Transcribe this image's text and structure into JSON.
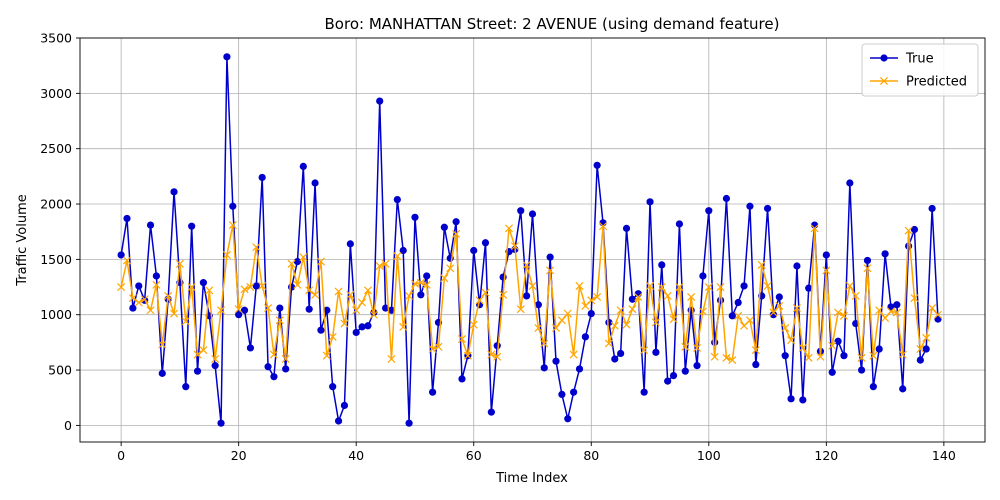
{
  "chart_data": {
    "type": "line",
    "title": "Boro: MANHATTAN Street: 2 AVENUE (using demand feature)",
    "xlabel": "Time Index",
    "ylabel": "Traffic Volume",
    "xlim": [
      -7,
      147
    ],
    "ylim": [
      -150,
      3500
    ],
    "xticks": [
      0,
      20,
      40,
      60,
      80,
      100,
      120,
      140
    ],
    "yticks": [
      0,
      500,
      1000,
      1500,
      2000,
      2500,
      3000,
      3500
    ],
    "grid": true,
    "legend_position": "top-right",
    "series": [
      {
        "name": "True",
        "color": "#0000cc",
        "marker": "circle",
        "values": [
          1540,
          1870,
          1060,
          1260,
          1130,
          1810,
          1350,
          470,
          1140,
          2110,
          1290,
          350,
          1800,
          490,
          1290,
          990,
          540,
          20,
          3330,
          1980,
          1000,
          1040,
          700,
          1260,
          2240,
          530,
          440,
          1060,
          510,
          1250,
          1480,
          2340,
          1050,
          2190,
          860,
          1040,
          350,
          40,
          180,
          1640,
          840,
          890,
          900,
          1020,
          2930,
          1060,
          1040,
          2040,
          1580,
          20,
          1880,
          1180,
          1350,
          300,
          930,
          1790,
          1510,
          1840,
          420,
          630,
          1580,
          1090,
          1650,
          120,
          720,
          1340,
          1570,
          1590,
          1940,
          1170,
          1910,
          1090,
          520,
          1520,
          580,
          280,
          60,
          300,
          510,
          800,
          1010,
          2350,
          1830,
          930,
          600,
          650,
          1780,
          1140,
          1190,
          300,
          2020,
          660,
          1450,
          400,
          450,
          1820,
          490,
          1040,
          540,
          1350,
          1940,
          750,
          1130,
          2050,
          990,
          1110,
          1260,
          1980,
          550,
          1170,
          1960,
          1000,
          1160,
          630,
          240,
          1440,
          230,
          1240,
          1810,
          670,
          1540,
          480,
          760,
          630,
          2190,
          920,
          500,
          1490,
          350,
          690,
          1550,
          1070,
          1090,
          330,
          1620,
          1770,
          590,
          690,
          1960,
          960
        ]
      },
      {
        "name": "Predicted",
        "color": "#ffa500",
        "marker": "x",
        "values": [
          1250,
          1490,
          1150,
          1110,
          1140,
          1040,
          1270,
          730,
          1170,
          1010,
          1460,
          940,
          1250,
          640,
          680,
          1220,
          600,
          1040,
          1540,
          1810,
          1050,
          1230,
          1250,
          1610,
          1260,
          1060,
          640,
          950,
          600,
          1460,
          1270,
          1520,
          1220,
          1180,
          1480,
          630,
          800,
          1210,
          920,
          1180,
          1040,
          1110,
          1220,
          1000,
          1440,
          1460,
          600,
          1530,
          890,
          1170,
          1280,
          1290,
          1270,
          690,
          710,
          1330,
          1420,
          1730,
          780,
          630,
          910,
          1130,
          1200,
          640,
          620,
          1180,
          1780,
          1620,
          1050,
          1450,
          1260,
          880,
          740,
          1400,
          880,
          950,
          1010,
          640,
          1260,
          1080,
          1130,
          1160,
          1800,
          740,
          900,
          1040,
          910,
          1050,
          1160,
          680,
          1260,
          930,
          1250,
          1170,
          960,
          1250,
          710,
          1160,
          700,
          1030,
          1250,
          620,
          1250,
          610,
          590,
          990,
          900,
          950,
          680,
          1450,
          1260,
          1020,
          1080,
          880,
          770,
          1060,
          700,
          610,
          1780,
          620,
          1400,
          720,
          1020,
          990,
          1260,
          1170,
          610,
          1420,
          630,
          1040,
          970,
          1030,
          1020,
          640,
          1760,
          1150,
          690,
          790,
          1060,
          1000
        ]
      }
    ]
  }
}
